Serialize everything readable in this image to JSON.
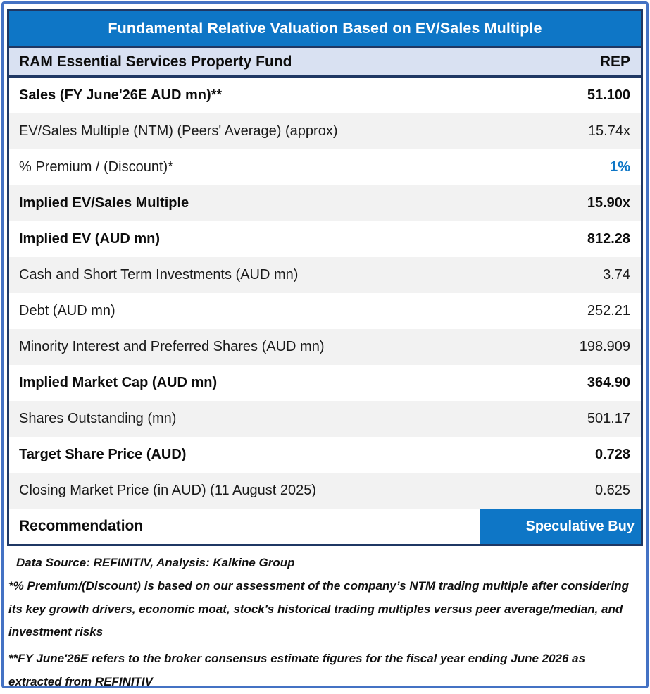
{
  "title": "Fundamental Relative Valuation Based on EV/Sales Multiple",
  "company_header": {
    "name": "RAM Essential Services Property Fund",
    "ticker": "REP"
  },
  "rows": [
    {
      "label": "Sales (FY June'26E AUD mn)**",
      "value": "51.100"
    },
    {
      "label": "EV/Sales Multiple (NTM)  (Peers' Average) (approx)",
      "value": "15.74x"
    },
    {
      "label": "% Premium / (Discount)*",
      "value": "1%"
    },
    {
      "label": "Implied EV/Sales Multiple",
      "value": "15.90x"
    },
    {
      "label": "Implied EV (AUD mn)",
      "value": "812.28"
    },
    {
      "label": "Cash and Short Term Investments (AUD mn)",
      "value": "3.74"
    },
    {
      "label": "Debt (AUD mn)",
      "value": "252.21"
    },
    {
      "label": "Minority Interest and Preferred Shares (AUD mn)",
      "value": "198.909"
    },
    {
      "label": "Implied Market Cap (AUD mn)",
      "value": "364.90"
    },
    {
      "label": "Shares Outstanding (mn)",
      "value": "501.17"
    },
    {
      "label": "Target Share Price (AUD)",
      "value": "0.728"
    },
    {
      "label": "Closing Market Price (in AUD) (11 August 2025)",
      "value": "0.625"
    }
  ],
  "recommendation": {
    "label": "Recommendation",
    "value": "Speculative Buy"
  },
  "footnotes": {
    "source": "Data Source: REFINITIV, Analysis: Kalkine Group",
    "premium_note": "*% Premium/(Discount) is based on our assessment of the company’s NTM trading multiple after considering its key growth drivers, economic moat, stock's historical trading multiples versus peer average/median, and investment risks",
    "fy_note": "**FY June'26E refers to the broker consensus estimate figures for the fiscal year ending June 2026  as extracted from REFINITIV"
  },
  "colors": {
    "accent_blue": "#0E76C6",
    "premium_value_blue": "#0E76C6",
    "navy_border": "#1F3864",
    "frame_blue": "#4472C4",
    "header_lavender": "#D9E1F2",
    "stripe_gray": "#F2F2F2",
    "text_dark": "#1A1A1A"
  }
}
